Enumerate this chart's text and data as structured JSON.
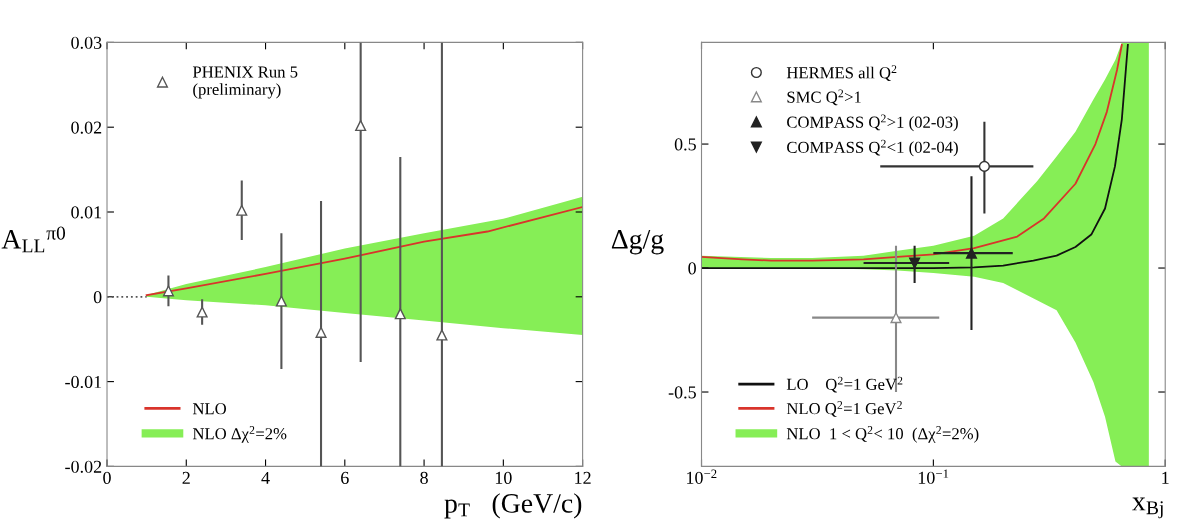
{
  "chart_data": [
    {
      "type": "line",
      "xlabel": "p$_{T}$   (GeV/c)",
      "ylabel": "A$_{LL}$$^{π0}$",
      "xlim": [
        0,
        12
      ],
      "ylim": [
        -0.02,
        0.03
      ],
      "xticks": [
        0,
        2,
        4,
        6,
        8,
        10,
        12
      ],
      "yticks": [
        -0.02,
        -0.01,
        0,
        0.01,
        0.02,
        0.03
      ],
      "grid": false,
      "legend": "left",
      "series": [
        {
          "name": "NLO",
          "color": "#d9342b",
          "x": [
            1,
            2,
            4,
            6,
            8,
            9.6,
            12
          ],
          "values": [
            0.0002,
            0.001,
            0.0027,
            0.0045,
            0.0065,
            0.0077,
            0.0106
          ]
        },
        {
          "name": "NLO Δχ$^{2}$=2%",
          "color": "#86ee56",
          "x": [
            1,
            2,
            4,
            6,
            8,
            10,
            12
          ],
          "values": [
            null,
            null,
            null,
            null,
            null,
            null,
            null
          ],
          "lower": [
            0,
            -0.0004,
            -0.001,
            -0.0019,
            -0.0028,
            -0.0037,
            -0.0045
          ],
          "upper": [
            0.0002,
            0.0015,
            0.0035,
            0.0057,
            0.0075,
            0.0092,
            0.0118
          ]
        },
        {
          "color": "#555555",
          "line_style": "dotted",
          "x": [
            0,
            1
          ],
          "values": [
            0,
            0
          ]
        },
        {
          "type": "scatter",
          "name": "PHENIX Run 5\n(preliminary)",
          "color": "#555555",
          "marker": "triangle-open",
          "x": [
            1.55,
            2.4,
            3.4,
            4.4,
            5.4,
            6.4,
            7.4,
            8.45
          ],
          "values": [
            0.0007,
            -0.0018,
            0.0102,
            -0.0005,
            -0.0042,
            0.0202,
            -0.002,
            -0.0045
          ],
          "errors": [
            0.0018,
            0.0015,
            0.0035,
            0.008,
            [
              -0.02,
              0.0113
            ],
            [
              -0.0077,
              0.03
            ],
            [
              -0.02,
              0.0165
            ],
            [
              -0.02,
              0.03
            ]
          ]
        }
      ]
    },
    {
      "type": "line",
      "xlabel": "x$_{Bj}$",
      "ylabel": "Δg/g",
      "log": "x",
      "xlim": [
        0.01,
        1
      ],
      "ylim": [
        -0.8,
        0.91
      ],
      "xticks": [
        {
          "value": 0.01,
          "label": "10$^{−2}$"
        },
        {
          "value": 0.1,
          "label": "10$^{−1}$"
        },
        1
      ],
      "yticks": [
        -0.5,
        0,
        0.5
      ],
      "grid": false,
      "legend": "left",
      "series": [
        {
          "name": "LO    Q$^{2}$=1 GeV$^{2}$",
          "color": "#111111",
          "x": [
            0.01,
            0.05,
            0.1,
            0.15,
            0.2,
            0.27,
            0.34,
            0.41,
            0.48,
            0.55,
            0.607,
            0.65,
            0.69
          ],
          "values": [
            0,
            0,
            0,
            0.003,
            0.01,
            0.03,
            0.05,
            0.085,
            0.135,
            0.24,
            0.41,
            0.6,
            0.9
          ]
        },
        {
          "name": "NLO Q$^{2}$=1 GeV$^{2}$",
          "color": "#d9342b",
          "x": [
            0.01,
            0.015,
            0.02,
            0.03,
            0.05,
            0.07,
            0.1,
            0.15,
            0.23,
            0.3,
            0.41,
            0.5,
            0.56,
            0.62,
            0.65
          ],
          "values": [
            0.045,
            0.035,
            0.03,
            0.03,
            0.035,
            0.045,
            0.055,
            0.08,
            0.127,
            0.2,
            0.34,
            0.5,
            0.63,
            0.8,
            0.9
          ]
        },
        {
          "name": "NLO  1 < Q$^{2}$< 10  (Δχ$^{2}$=2%)",
          "color": "#86ee56",
          "x": [
            0.01,
            0.02,
            0.03,
            0.05,
            0.07,
            0.1,
            0.15,
            0.2,
            0.28,
            0.34,
            0.41,
            0.49,
            0.55,
            0.61,
            0.65,
            0.7,
            0.85
          ],
          "values": [
            null,
            null,
            null,
            null,
            null,
            null,
            null,
            null,
            null,
            null,
            null,
            null,
            null,
            null,
            null,
            null,
            null
          ],
          "lower": [
            0,
            0,
            0,
            -0.005,
            -0.01,
            -0.02,
            -0.035,
            -0.06,
            -0.13,
            -0.17,
            -0.3,
            -0.46,
            -0.6,
            -0.78,
            -0.8,
            -0.8,
            -0.8
          ],
          "upper": [
            0.05,
            0.04,
            0.04,
            0.05,
            0.07,
            0.09,
            0.13,
            0.2,
            0.35,
            0.45,
            0.55,
            0.68,
            0.76,
            0.84,
            0.91,
            0.91,
            0.91
          ]
        },
        {
          "type": "scatter",
          "name": "HERMES all Q$^{2}$",
          "color": "#333333",
          "marker": "circle-open",
          "x": [
            0.166
          ],
          "values": [
            0.41
          ],
          "errors": [
            [
              0.22,
              0.59
            ]
          ],
          "xerrors": [
            [
              0.059,
              0.27
            ]
          ]
        },
        {
          "type": "scatter",
          "name": "SMC Q$^{2}$>1",
          "color": "#888888",
          "marker": "triangle-open",
          "x": [
            0.069
          ],
          "values": [
            -0.2
          ],
          "errors": [
            [
              -0.5,
              0.09
            ]
          ],
          "xerrors": [
            [
              0.03,
              0.106
            ]
          ]
        },
        {
          "type": "scatter",
          "name": "COMPASS Q$^{2}$>1 (02-03)",
          "color": "#222222",
          "marker": "triangle",
          "x": [
            0.146
          ],
          "values": [
            0.06
          ],
          "errors": [
            [
              -0.25,
              0.37
            ]
          ],
          "xerrors": [
            [
              0.1,
              0.22
            ]
          ]
        },
        {
          "type": "scatter",
          "name": "COMPASS Q$^{2}$<1 (02-04)",
          "color": "#222222",
          "marker": "triangle-down",
          "x": [
            0.083
          ],
          "values": [
            0.02
          ],
          "errors": [
            [
              -0.06,
              0.09
            ]
          ],
          "xerrors": [
            [
              0.05,
              0.117
            ]
          ]
        }
      ]
    }
  ]
}
